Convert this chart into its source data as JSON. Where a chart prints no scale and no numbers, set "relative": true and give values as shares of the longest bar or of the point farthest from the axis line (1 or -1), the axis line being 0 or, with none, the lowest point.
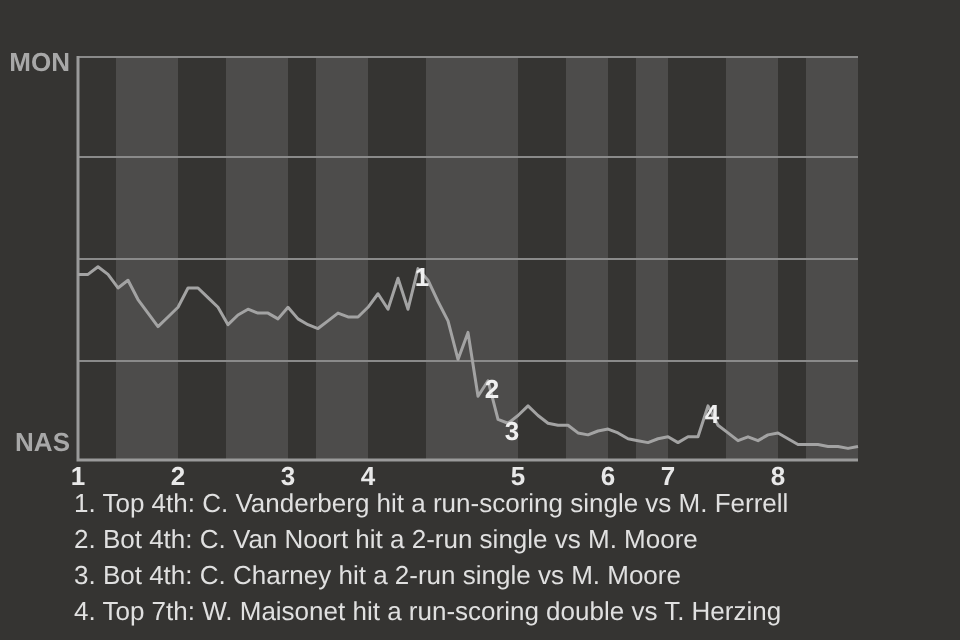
{
  "chart_data": {
    "type": "line",
    "relative": true,
    "marker": "none",
    "line_style": "solid",
    "legend": false,
    "ref_lines": [
      {
        "axis": "y",
        "value": 0.52,
        "color": "#8a8a8a",
        "line_style": "solid"
      },
      {
        "axis": "y",
        "value": 1.04,
        "color": "#8a8a8a",
        "line_style": "solid"
      },
      {
        "axis": "y",
        "value": 1.57,
        "color": "#8a8a8a",
        "line_style": "solid"
      }
    ],
    "categories": [
      "1",
      null,
      null,
      null,
      null,
      null,
      null,
      null,
      null,
      null,
      "2",
      null,
      null,
      null,
      null,
      null,
      null,
      null,
      null,
      null,
      null,
      "3",
      null,
      null,
      null,
      null,
      null,
      null,
      null,
      "4",
      null,
      null,
      null,
      null,
      null,
      null,
      null,
      null,
      null,
      null,
      null,
      null,
      null,
      null,
      "5",
      null,
      null,
      null,
      null,
      null,
      null,
      null,
      null,
      "6",
      null,
      null,
      null,
      null,
      null,
      "7",
      null,
      null,
      null,
      null,
      null,
      null,
      null,
      null,
      null,
      null,
      "8",
      null,
      null,
      null,
      null,
      null,
      null,
      null,
      null
    ],
    "series": [
      {
        "color": "#a3a3a3",
        "values": [
          0.96,
          0.96,
          1,
          0.96,
          0.89,
          0.93,
          0.83,
          0.76,
          0.69,
          0.74,
          0.79,
          0.89,
          0.89,
          0.84,
          0.79,
          0.7,
          0.75,
          0.78,
          0.76,
          0.76,
          0.73,
          0.79,
          0.73,
          0.7,
          0.68,
          0.72,
          0.76,
          0.74,
          0.74,
          0.79,
          0.86,
          0.78,
          0.94,
          0.78,
          0.99,
          0.93,
          0.82,
          0.72,
          0.52,
          0.66,
          0.33,
          0.41,
          0.21,
          0.19,
          0.23,
          0.28,
          0.23,
          0.19,
          0.18,
          0.18,
          0.14,
          0.13,
          0.15,
          0.16,
          0.14,
          0.11,
          0.1,
          0.09,
          0.11,
          0.12,
          0.09,
          0.12,
          0.12,
          0.28,
          0.18,
          0.14,
          0.1,
          0.12,
          0.1,
          0.13,
          0.14,
          0.11,
          0.08,
          0.08,
          0.08,
          0.07,
          0.07,
          0.06,
          0.07
        ]
      }
    ],
    "annotations": [
      {
        "text": "1",
        "y": 0.99
      },
      {
        "text": "2",
        "y": 0.41
      },
      {
        "text": "3",
        "y": 0.19
      },
      {
        "text": "4",
        "y": 0.28
      },
      "MON",
      "NAS",
      "1. Top 4th: C. Vanderberg hit a run-scoring single vs M. Ferrell",
      "2. Bot 4th: C. Van Noort hit a 2-run single vs M. Moore",
      "3. Bot 4th: C. Charney hit a 2-run single vs M. Moore",
      "4. Top 7th: W. Maisonet hit a run-scoring double vs T. Herzing"
    ]
  }
}
